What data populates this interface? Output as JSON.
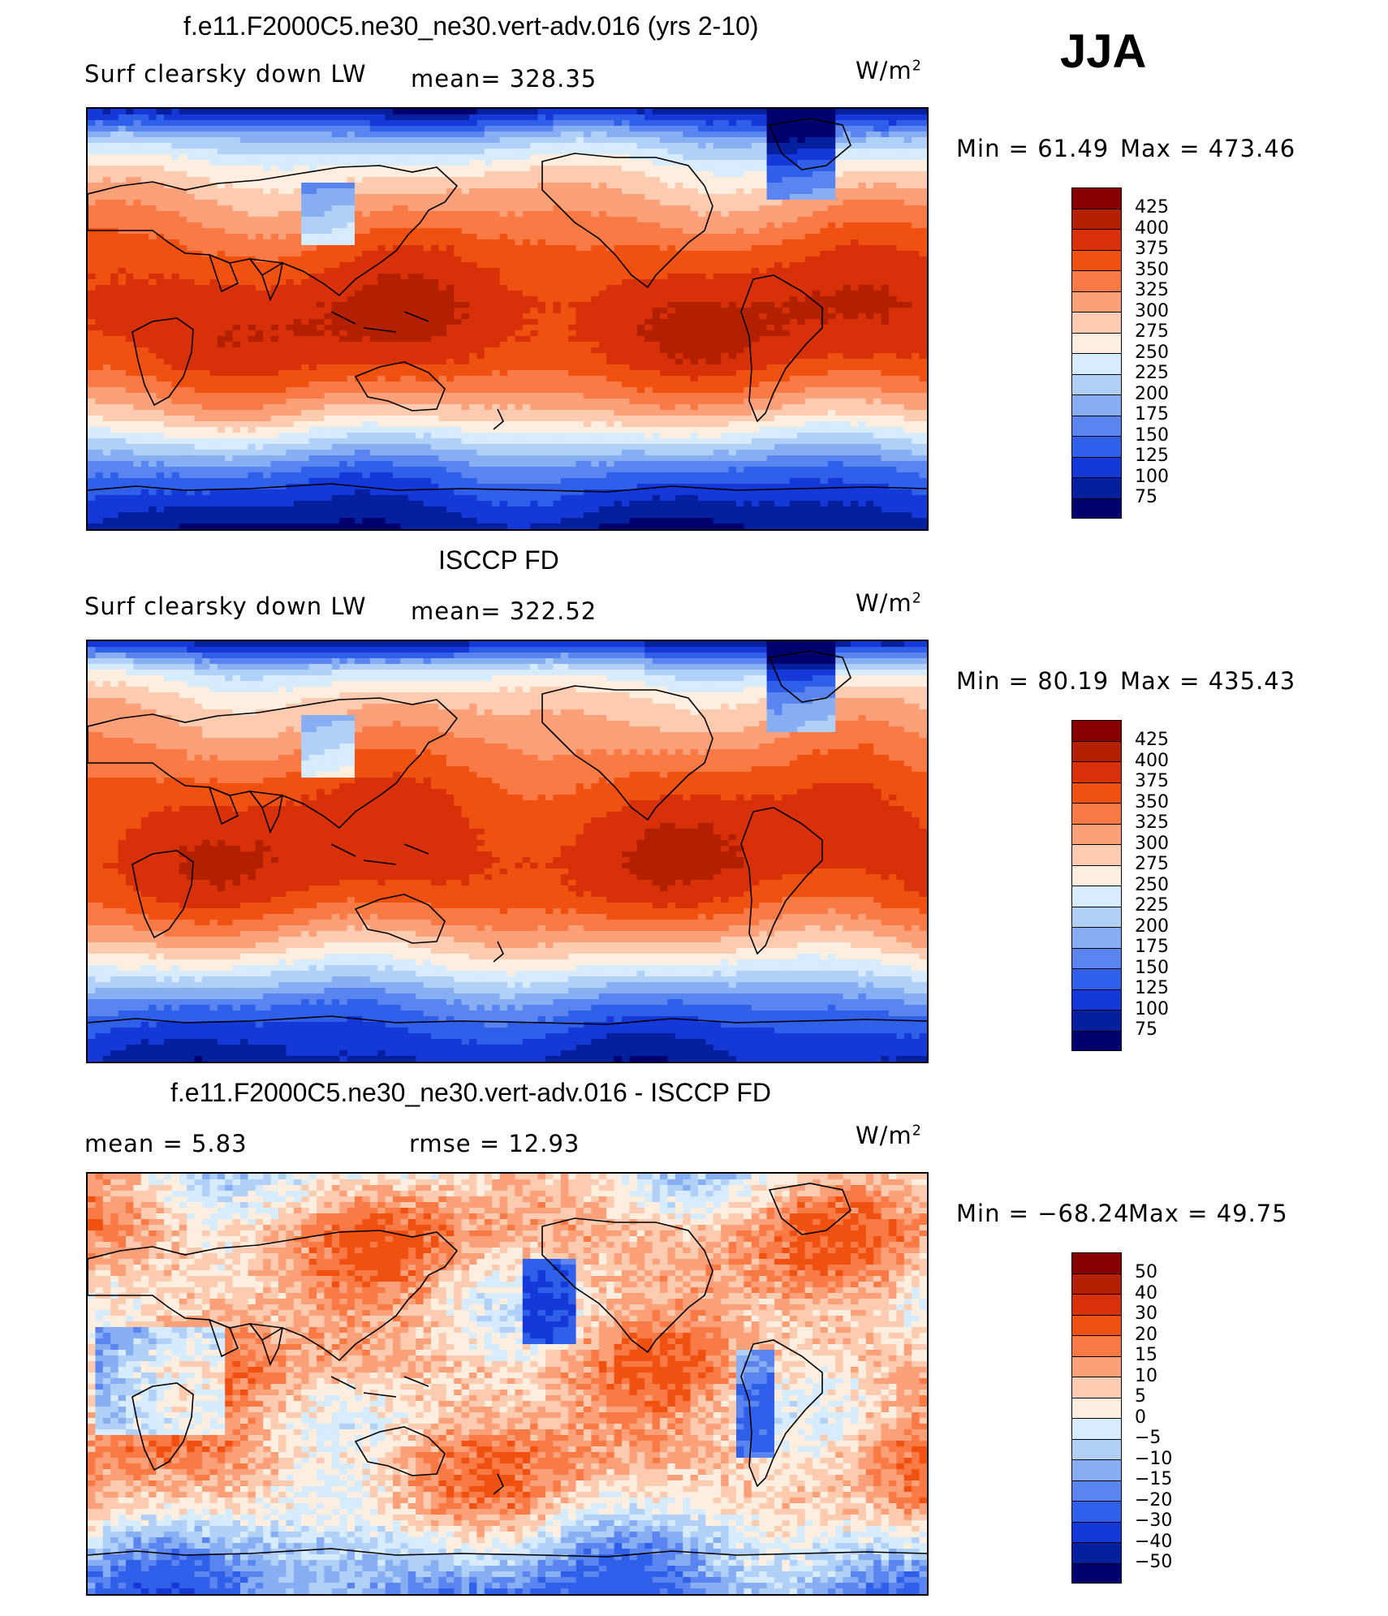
{
  "season": "JJA",
  "units_label": "W/m",
  "units_sup": "2",
  "chart_data": [
    {
      "type": "heatmap",
      "title": "f.e11.F2000C5.ne30_ne30.vert-adv.016 (yrs 2-10)",
      "subtitle": "Surf clearsky down LW",
      "mean_text": "mean= 328.35",
      "min_text": "Min =   61.49",
      "max_text": "Max  =  473.46",
      "stats": {
        "mean": 328.35,
        "min": 61.49,
        "max": 473.46
      },
      "colorbar_levels": [
        "425",
        "400",
        "375",
        "350",
        "325",
        "300",
        "275",
        "250",
        "225",
        "200",
        "175",
        "150",
        "125",
        "100",
        "75"
      ],
      "colors": [
        "#870000",
        "#b32000",
        "#d83008",
        "#f05010",
        "#f97a45",
        "#fca07a",
        "#fdcbb0",
        "#fdeee0",
        "#d6ebfb",
        "#b0d0f8",
        "#87aef3",
        "#5a84ef",
        "#3060e9",
        "#1538d8",
        "#05209e",
        "#00006e"
      ],
      "lat_profile": [
        90,
        200,
        260,
        300,
        330,
        360,
        380,
        395,
        395,
        380,
        340,
        290,
        220,
        150,
        110,
        80
      ]
    },
    {
      "type": "heatmap",
      "title": "ISCCP FD",
      "subtitle": "Surf clearsky down LW",
      "mean_text": "mean= 322.52",
      "min_text": "Min =   80.19",
      "max_text": "Max  =  435.43",
      "stats": {
        "mean": 322.52,
        "min": 80.19,
        "max": 435.43
      },
      "colorbar_levels": [
        "425",
        "400",
        "375",
        "350",
        "325",
        "300",
        "275",
        "250",
        "225",
        "200",
        "175",
        "150",
        "125",
        "100",
        "75"
      ],
      "colors": [
        "#870000",
        "#b32000",
        "#d83008",
        "#f05010",
        "#f97a45",
        "#fca07a",
        "#fdcbb0",
        "#fdeee0",
        "#d6ebfb",
        "#b0d0f8",
        "#87aef3",
        "#5a84ef",
        "#3060e9",
        "#1538d8",
        "#05209e",
        "#00006e"
      ],
      "lat_profile": [
        100,
        230,
        285,
        310,
        335,
        360,
        378,
        388,
        390,
        375,
        335,
        285,
        225,
        160,
        120,
        95
      ]
    },
    {
      "type": "heatmap",
      "title": "f.e11.F2000C5.ne30_ne30.vert-adv.016 - ISCCP FD",
      "mean_text": "mean =     5.83",
      "rmse_text": "rmse =    12.93",
      "min_text": "Min  = −68.24",
      "max_text": "Max  =    49.75",
      "stats": {
        "mean": 5.83,
        "rmse": 12.93,
        "min": -68.24,
        "max": 49.75
      },
      "colorbar_levels": [
        "50",
        "40",
        "30",
        "20",
        "15",
        "10",
        "5",
        "0",
        "−5",
        "−10",
        "−15",
        "−20",
        "−30",
        "−40",
        "−50"
      ],
      "colors": [
        "#870000",
        "#b32000",
        "#d83008",
        "#f05010",
        "#f97a45",
        "#fca07a",
        "#fdcbb0",
        "#fdeee0",
        "#d6ebfb",
        "#b0d0f8",
        "#87aef3",
        "#5a84ef",
        "#3060e9",
        "#1538d8",
        "#05209e",
        "#00006e"
      ],
      "lat_profile": [
        2,
        8,
        14,
        12,
        8,
        6,
        10,
        12,
        9,
        8,
        12,
        10,
        6,
        -4,
        -12,
        -18
      ]
    }
  ]
}
